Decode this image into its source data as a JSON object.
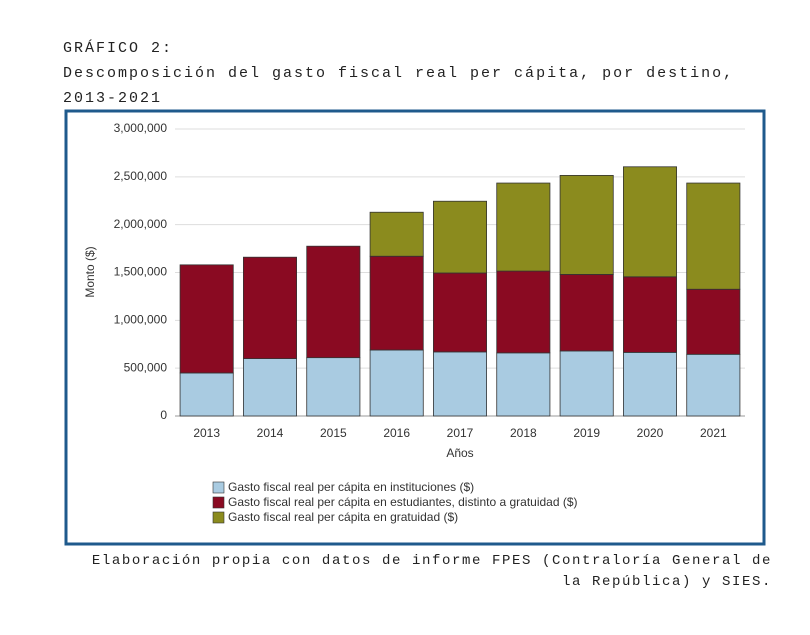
{
  "header": {
    "label": "GRÁFICO 2:"
  },
  "chart_data": {
    "type": "stacked-bar",
    "title": "Descomposición del gasto fiscal real per cápita, por destino, 2013-2021",
    "x_label": "Años",
    "y_label": "Monto ($)",
    "categories": [
      "2013",
      "2014",
      "2015",
      "2016",
      "2017",
      "2018",
      "2019",
      "2020",
      "2021"
    ],
    "series": [
      {
        "name": "Gasto fiscal real per cápita en instituciones ($)",
        "color": "#a9cbe1",
        "values": [
          450000,
          600000,
          610000,
          690000,
          670000,
          660000,
          680000,
          665000,
          645000
        ]
      },
      {
        "name": "Gasto fiscal real per cápita en estudiantes, distinto a gratuidad ($)",
        "color": "#8a0a22",
        "values": [
          1130000,
          1060000,
          1165000,
          980000,
          825000,
          855000,
          800000,
          790000,
          680000
        ]
      },
      {
        "name": "Gasto fiscal real per cápita en gratuidad ($)",
        "color": "#8b8b1e",
        "values": [
          0,
          0,
          0,
          460000,
          750000,
          920000,
          1035000,
          1150000,
          1110000
        ]
      }
    ],
    "ylim": [
      0,
      3000000
    ],
    "yticks": [
      0,
      {
        "value": 500000,
        "label": "500,000"
      },
      {
        "value": 1000000,
        "label": "1,000,000"
      },
      {
        "value": 1500000,
        "label": "1,500,000"
      },
      {
        "value": 2000000,
        "label": "2,000,000"
      },
      {
        "value": 2500000,
        "label": "2,500,000"
      },
      {
        "value": 3000000,
        "label": "3,000,000"
      }
    ],
    "grid": true
  },
  "footer": {
    "source": "Elaboración propia con datos de informe FPES (Contraloría General de la República) y SIES."
  }
}
